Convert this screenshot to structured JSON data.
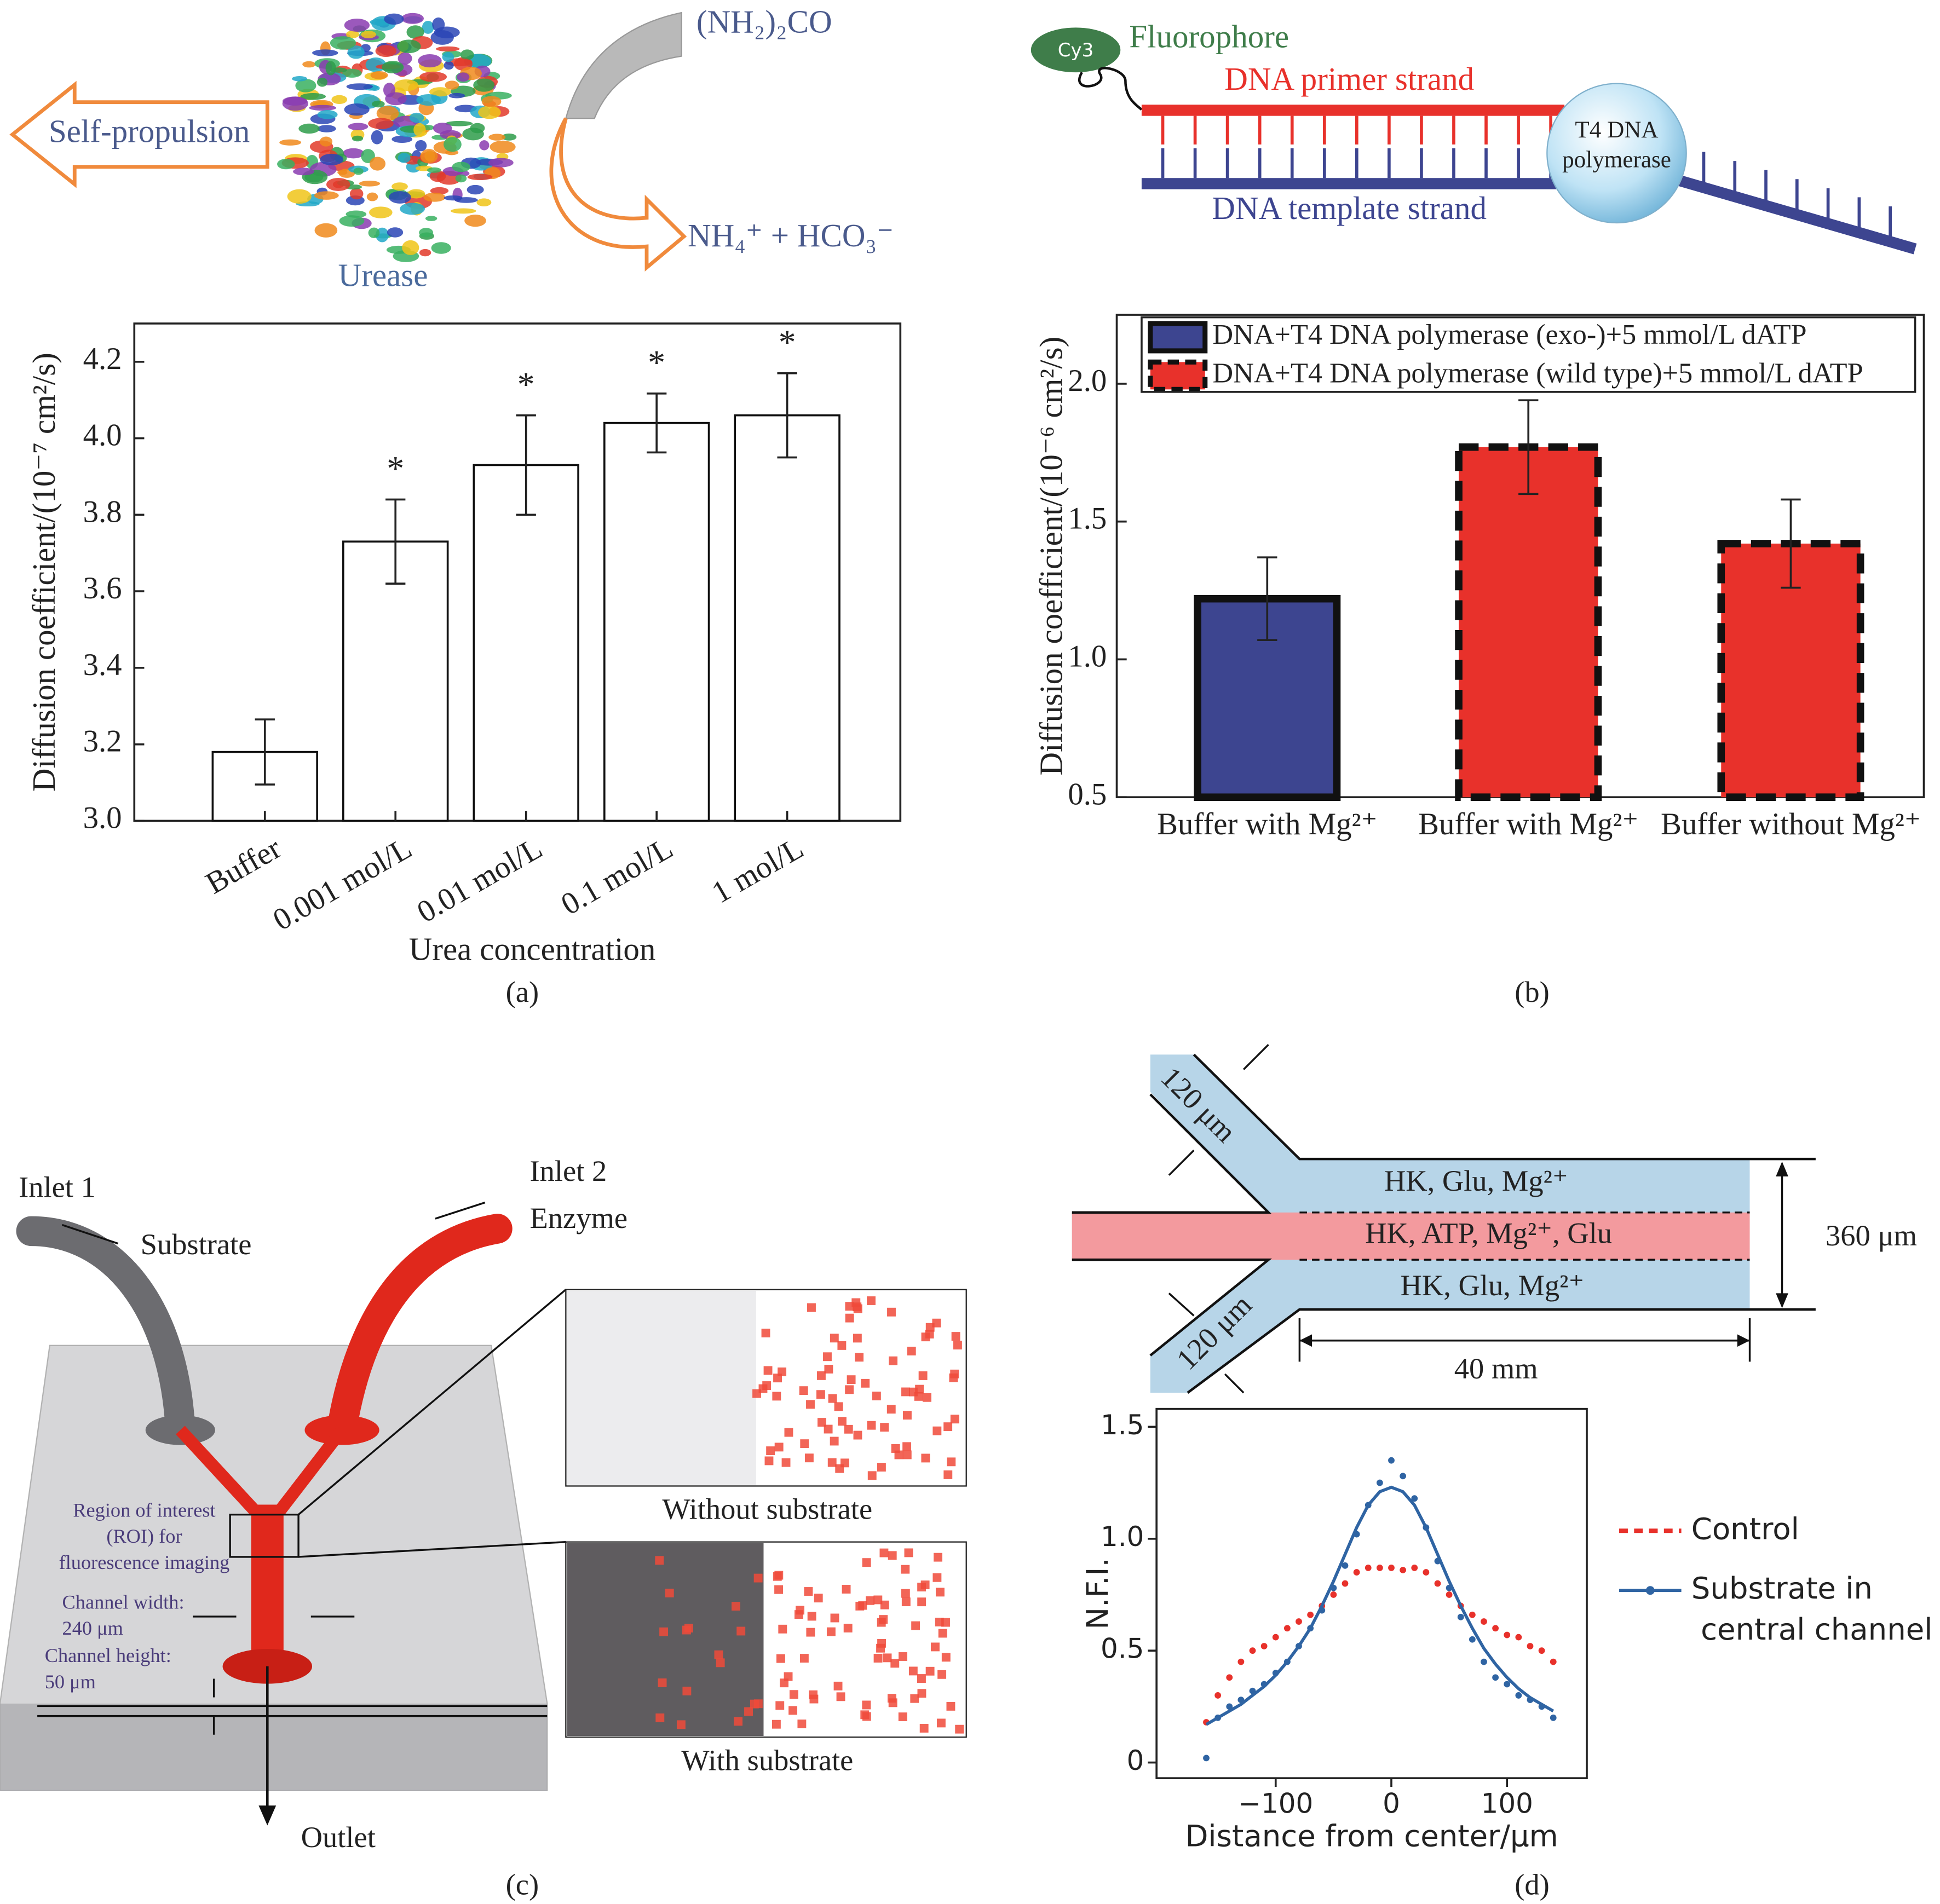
{
  "panel_labels": [
    "(a)",
    "(b)",
    "(c)",
    "(d)"
  ],
  "diagram_a": {
    "motion": "Self-propulsion",
    "substrate": "(NH₂)₂CO",
    "products": "NH₄⁺ + HCO₃⁻",
    "enzyme": "Urease"
  },
  "diagram_b": {
    "dye": "Cy3",
    "fluorophore": "Fluorophore",
    "primer": "DNA primer strand",
    "template": "DNA template strand",
    "polymerase": [
      "T4 DNA",
      "polymerase"
    ]
  },
  "diagram_c": {
    "inlet1": "Inlet 1",
    "substrate": "Substrate",
    "inlet2": "Inlet 2",
    "enzyme": "Enzyme",
    "roi": [
      "Region of interest",
      "(ROI) for",
      "fluorescence imaging"
    ],
    "width_label": "Channel width:",
    "width_value": "240 μm",
    "height_label": "Channel height:",
    "height_value": "50 μm",
    "outlet": "Outlet",
    "inset_top": "Without substrate",
    "inset_bottom": "With substrate"
  },
  "diagram_d": {
    "inlet_width_top": "120 μm",
    "inlet_width_bottom": "120 μm",
    "stream_top": "HK, Glu, Mg²⁺",
    "stream_center": "HK, ATP, Mg²⁺, Glu",
    "stream_bottom": "HK, Glu, Mg²⁺",
    "total_width": "360 μm",
    "length": "40 mm"
  },
  "chart_data": [
    {
      "type": "bar",
      "ylabel": "Diffusion coefficient/(10⁻⁷ cm²/s)",
      "xlabel": "Urea concentration",
      "categories": [
        "Buffer",
        "0.001 mol/L",
        "0.01 mol/L",
        "0.1 mol/L",
        "1 mol/L"
      ],
      "values": [
        3.18,
        3.73,
        3.93,
        4.04,
        4.06
      ],
      "errors": [
        0.085,
        0.11,
        0.13,
        0.077,
        0.11
      ],
      "significance": [
        null,
        "*",
        "*",
        "*",
        "*"
      ],
      "color": "#ffffff",
      "edgecolor": "#111111",
      "ylim": [
        3.0,
        4.3
      ],
      "yticks": [
        {
          "value": 3.0,
          "label": "3.0"
        },
        3.2,
        3.4,
        3.6,
        3.8,
        {
          "value": 4.0,
          "label": "4.0"
        },
        4.2
      ]
    },
    {
      "type": "bar",
      "ylabel": "Diffusion coefficient/(10⁻⁶ cm²/s)",
      "categories": [
        "Buffer with Mg²⁺",
        "Buffer with Mg²⁺",
        "Buffer without Mg²⁺"
      ],
      "series": [
        {
          "name": "DNA+T4 DNA polymerase (exo-)+5 mmol/L dATP",
          "color": "#3d4590",
          "border": "solid",
          "values": [
            1.22,
            null,
            null
          ],
          "errors": [
            0.15,
            null,
            null
          ]
        },
        {
          "name": "DNA+T4 DNA polymerase (wild type)+5 mmol/L dATP",
          "color": "#e8312b",
          "border": "dashed",
          "values": [
            null,
            1.77,
            1.42
          ],
          "errors": [
            null,
            0.17,
            0.16
          ]
        }
      ],
      "legend": "upper left",
      "ylim": [
        0.5,
        2.25
      ],
      "yticks": [
        0.5,
        {
          "value": 1.0,
          "label": "1.0"
        },
        1.5,
        {
          "value": 2.0,
          "label": "2.0"
        }
      ]
    },
    {
      "type": "scatter",
      "ylabel": "N.F.I.",
      "xlabel": "Distance from center/μm",
      "x": [
        -160,
        -150,
        -140,
        -130,
        -120,
        -110,
        -100,
        -90,
        -80,
        -70,
        -60,
        -50,
        -40,
        -30,
        -20,
        -10,
        0,
        10,
        20,
        30,
        40,
        50,
        60,
        70,
        80,
        90,
        100,
        110,
        120,
        130,
        140
      ],
      "series": [
        {
          "name": "Control",
          "color": "#e8312b",
          "style": "dashed",
          "values": [
            0.18,
            0.3,
            0.38,
            0.45,
            0.5,
            0.52,
            0.56,
            0.6,
            0.63,
            0.66,
            0.7,
            0.75,
            0.8,
            0.85,
            0.87,
            0.87,
            0.87,
            0.86,
            0.87,
            0.85,
            0.8,
            0.75,
            0.7,
            0.66,
            0.63,
            0.6,
            0.57,
            0.56,
            0.52,
            0.5,
            0.45
          ]
        },
        {
          "name": "Substrate in central channel",
          "color": "#2f64a3",
          "style": "line",
          "values": [
            0.02,
            0.2,
            0.25,
            0.28,
            0.32,
            0.35,
            0.4,
            0.45,
            0.52,
            0.6,
            0.68,
            0.78,
            0.88,
            1.02,
            1.15,
            1.25,
            1.35,
            1.28,
            1.18,
            1.05,
            0.9,
            0.78,
            0.65,
            0.55,
            0.45,
            0.38,
            0.35,
            0.3,
            0.28,
            0.25,
            0.2
          ],
          "fit": [
            0.17,
            0.2,
            0.23,
            0.26,
            0.3,
            0.34,
            0.39,
            0.45,
            0.52,
            0.6,
            0.7,
            0.81,
            0.93,
            1.05,
            1.15,
            1.21,
            1.23,
            1.21,
            1.15,
            1.05,
            0.93,
            0.81,
            0.7,
            0.6,
            0.51,
            0.44,
            0.38,
            0.33,
            0.29,
            0.26,
            0.23
          ]
        }
      ],
      "legend": "outside right",
      "xlim": [
        -203,
        169
      ],
      "ylim": [
        -0.07,
        1.58
      ],
      "xticks": [
        {
          "value": -100,
          "label": "−100"
        },
        0,
        100
      ],
      "yticks": [
        0,
        0.5,
        {
          "value": 1.0,
          "label": "1.0"
        },
        1.5
      ]
    }
  ]
}
